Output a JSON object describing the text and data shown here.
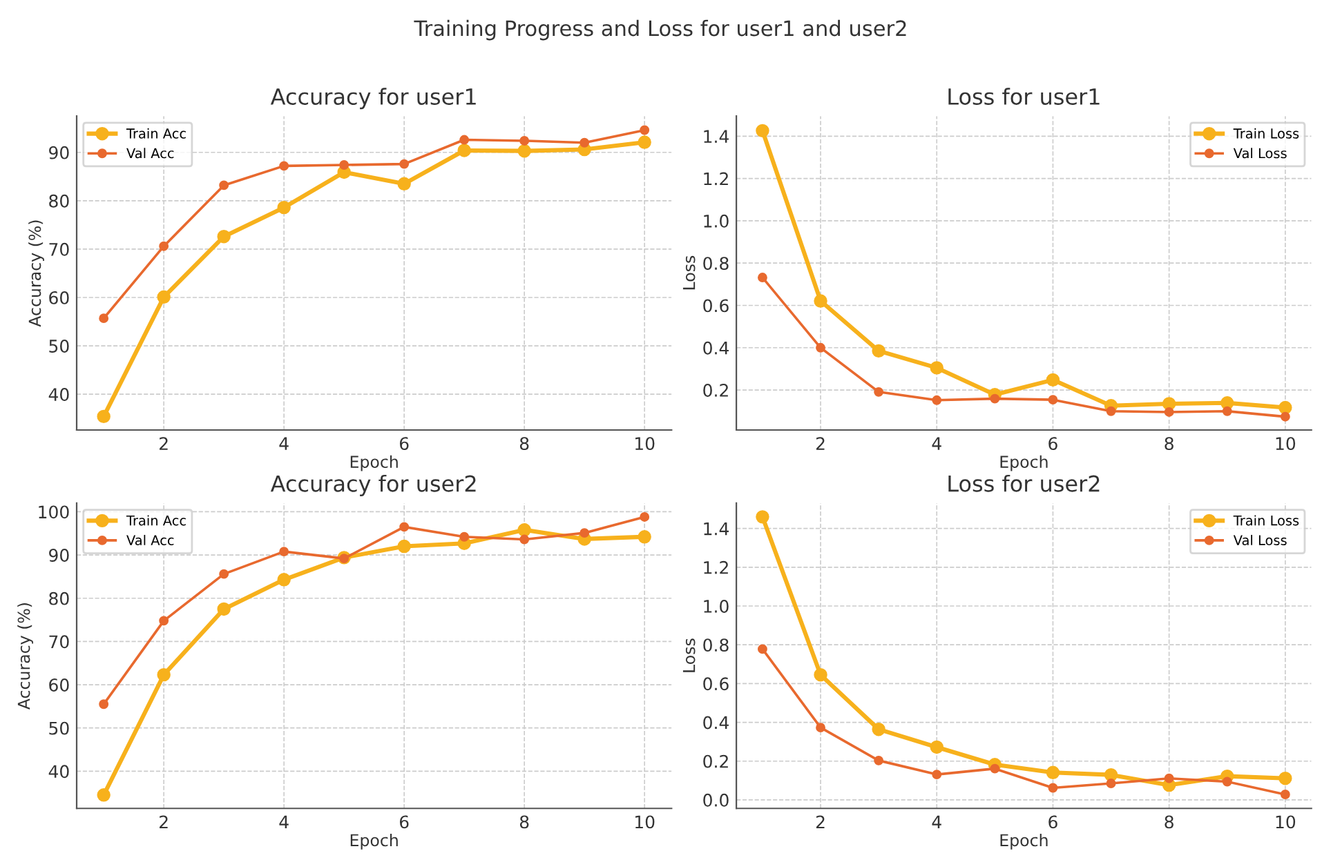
{
  "chart_data": [
    {
      "type": "line",
      "title": "Accuracy for user1",
      "annotations": [
        "Training Progress and Loss for user1 and user2"
      ],
      "xlabel": "Epoch",
      "ylabel": "Accuracy (%)",
      "x": [
        1,
        2,
        3,
        4,
        5,
        6,
        7,
        8,
        9,
        10
      ],
      "series": [
        {
          "name": "Train Acc",
          "color": "#f7b11c",
          "values": [
            35.4,
            60.1,
            72.6,
            78.6,
            85.9,
            83.5,
            90.4,
            90.3,
            90.6,
            92.1
          ]
        },
        {
          "name": "Val Acc",
          "color": "#e8692e",
          "values": [
            55.7,
            70.6,
            83.2,
            87.2,
            87.4,
            87.6,
            92.6,
            92.4,
            92.0,
            94.6
          ]
        }
      ],
      "xlim": [
        0.55,
        10.45
      ],
      "ylim": [
        32.6,
        97.5
      ],
      "xticks": [
        2,
        4,
        6,
        8,
        10
      ],
      "yticks": [
        40,
        50,
        60,
        70,
        80,
        90
      ],
      "grid": true,
      "legend": "top left",
      "marker": "circle",
      "line_style": "solid"
    },
    {
      "type": "line",
      "title": "Loss for user1",
      "xlabel": "Epoch",
      "ylabel": "Loss",
      "x": [
        1,
        2,
        3,
        4,
        5,
        6,
        7,
        8,
        9,
        10
      ],
      "series": [
        {
          "name": "Train Loss",
          "color": "#f7b11c",
          "values": [
            1.426,
            0.621,
            0.385,
            0.305,
            0.178,
            0.248,
            0.126,
            0.135,
            0.139,
            0.117
          ]
        },
        {
          "name": "Val Loss",
          "color": "#e8692e",
          "values": [
            0.732,
            0.4,
            0.191,
            0.152,
            0.159,
            0.154,
            0.1,
            0.096,
            0.1,
            0.074
          ]
        }
      ],
      "xlim": [
        0.55,
        10.45
      ],
      "ylim": [
        0.011,
        1.495
      ],
      "xticks": [
        2,
        4,
        6,
        8,
        10
      ],
      "yticks": [
        {
          "value": 0.2,
          "label": "0.2"
        },
        {
          "value": 0.4,
          "label": "0.4"
        },
        {
          "value": 0.6,
          "label": "0.6"
        },
        {
          "value": 0.8,
          "label": "0.8"
        },
        {
          "value": 1.0,
          "label": "1.0"
        },
        {
          "value": 1.2,
          "label": "1.2"
        },
        {
          "value": 1.4,
          "label": "1.4"
        }
      ],
      "grid": true,
      "legend": "top right",
      "marker": "circle",
      "line_style": "solid"
    },
    {
      "type": "line",
      "title": "Accuracy for user2",
      "xlabel": "Epoch",
      "ylabel": "Accuracy (%)",
      "x": [
        1,
        2,
        3,
        4,
        5,
        6,
        7,
        8,
        9,
        10
      ],
      "series": [
        {
          "name": "Train Acc",
          "color": "#f7b11c",
          "values": [
            34.5,
            62.3,
            77.5,
            84.3,
            89.4,
            92.0,
            92.7,
            95.8,
            93.7,
            94.2
          ]
        },
        {
          "name": "Val Acc",
          "color": "#e8692e",
          "values": [
            55.5,
            74.8,
            85.6,
            90.8,
            89.2,
            96.5,
            94.2,
            93.6,
            95.1,
            98.8
          ]
        }
      ],
      "xlim": [
        0.55,
        10.45
      ],
      "ylim": [
        31.4,
        102.0
      ],
      "xticks": [
        2,
        4,
        6,
        8,
        10
      ],
      "yticks": [
        40,
        50,
        60,
        70,
        80,
        90,
        100
      ],
      "grid": true,
      "legend": "top left",
      "marker": "circle",
      "line_style": "solid"
    },
    {
      "type": "line",
      "title": "Loss for user2",
      "xlabel": "Epoch",
      "ylabel": "Loss",
      "x": [
        1,
        2,
        3,
        4,
        5,
        6,
        7,
        8,
        9,
        10
      ],
      "series": [
        {
          "name": "Train Loss",
          "color": "#f7b11c",
          "values": [
            1.46,
            0.645,
            0.364,
            0.272,
            0.182,
            0.141,
            0.129,
            0.076,
            0.122,
            0.111
          ]
        },
        {
          "name": "Val Loss",
          "color": "#e8692e",
          "values": [
            0.778,
            0.373,
            0.203,
            0.131,
            0.161,
            0.062,
            0.085,
            0.111,
            0.094,
            0.028
          ]
        }
      ],
      "xlim": [
        0.55,
        10.45
      ],
      "ylim": [
        -0.044,
        1.531
      ],
      "xticks": [
        2,
        4,
        6,
        8,
        10
      ],
      "yticks": [
        {
          "value": 0.0,
          "label": "0.0"
        },
        {
          "value": 0.2,
          "label": "0.2"
        },
        {
          "value": 0.4,
          "label": "0.4"
        },
        {
          "value": 0.6,
          "label": "0.6"
        },
        {
          "value": 0.8,
          "label": "0.8"
        },
        {
          "value": 1.0,
          "label": "1.0"
        },
        {
          "value": 1.2,
          "label": "1.2"
        },
        {
          "value": 1.4,
          "label": "1.4"
        }
      ],
      "grid": true,
      "legend": "top right",
      "marker": "circle",
      "line_style": "solid"
    }
  ]
}
